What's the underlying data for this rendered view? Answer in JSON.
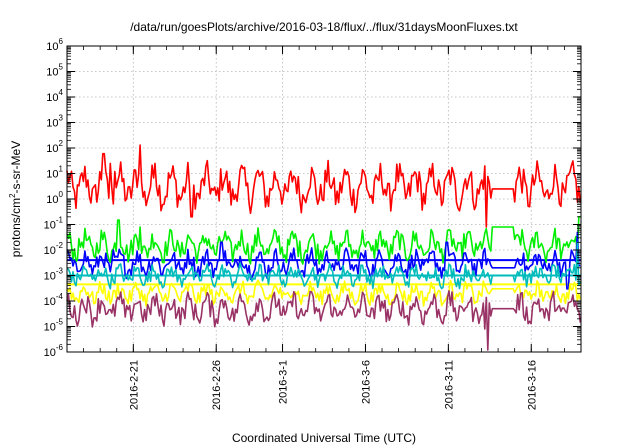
{
  "chart_data": {
    "type": "line",
    "title": "/data/run/goesPlots/archive/2016-03-18/flux/../flux/31daysMoonFluxes.txt",
    "xlabel": "Coordinated Universal Time (UTC)",
    "ylabel_parts": [
      "protons/cm",
      "2",
      "-s-sr-MeV"
    ],
    "y_scale": "log",
    "ylim": [
      1e-06,
      1000000.0
    ],
    "y_ticks": [
      {
        "base": "10",
        "exp": "-6"
      },
      {
        "base": "10",
        "exp": "-5"
      },
      {
        "base": "10",
        "exp": "-4"
      },
      {
        "base": "10",
        "exp": "-3"
      },
      {
        "base": "10",
        "exp": "-2"
      },
      {
        "base": "10",
        "exp": "-1"
      },
      {
        "base": "10",
        "exp": "0"
      },
      {
        "base": "10",
        "exp": "1"
      },
      {
        "base": "10",
        "exp": "2"
      },
      {
        "base": "10",
        "exp": "3"
      },
      {
        "base": "10",
        "exp": "4"
      },
      {
        "base": "10",
        "exp": "5"
      },
      {
        "base": "10",
        "exp": "6"
      }
    ],
    "xlim": [
      "2016-02-17",
      "2016-03-19"
    ],
    "x_ticks": [
      "2016-2-21",
      "2016-2-26",
      "2016-3-1",
      "2016-3-6",
      "2016-3-11",
      "2016-3-16"
    ],
    "x_tick_dates": [
      "2016-02-21",
      "2016-02-26",
      "2016-03-01",
      "2016-03-06",
      "2016-03-11",
      "2016-03-16"
    ],
    "grid": true,
    "series": [
      {
        "color": "#ff0000",
        "typical": 3,
        "spread": 1.0,
        "spikes": [
          [
            18.2,
            60
          ],
          [
            18.6,
            25
          ],
          [
            18.9,
            12
          ],
          [
            20.4,
            130
          ],
          [
            21.3,
            25
          ],
          [
            17.9,
            2
          ]
        ],
        "flat": [
          [
            41.6,
            43.0,
            2.5
          ]
        ],
        "dips": [
          [
            41.3,
            0.08
          ],
          [
            23.5,
            0.2
          ]
        ]
      },
      {
        "color": "#00ee00",
        "typical": 0.015,
        "spread": 0.7,
        "spikes": [
          [
            19.1,
            0.15
          ],
          [
            46.9,
            0.2
          ],
          [
            47.3,
            0.4
          ],
          [
            20.4,
            0.08
          ]
        ],
        "flat": [
          [
            41.6,
            43.0,
            0.08
          ]
        ],
        "dips": []
      },
      {
        "color": "#0000ff",
        "typical": 0.003,
        "spread": 0.6,
        "spikes": [
          [
            18.8,
            0.01
          ],
          [
            25.3,
            0.02
          ],
          [
            38.9,
            0.02
          ],
          [
            46.8,
            0.05
          ]
        ],
        "flat": [
          [
            41.6,
            43.0,
            0.002
          ]
        ],
        "dips": [
          [
            46.2,
            0.0003
          ]
        ]
      },
      {
        "color": "#00bbbb",
        "typical": 0.001,
        "spread": 0.5,
        "spikes": [
          [
            46.8,
            0.02
          ]
        ],
        "flat": [
          [
            41.6,
            43.0,
            0.001
          ]
        ],
        "dips": []
      },
      {
        "color": "#ffff00",
        "typical": 0.0002,
        "spread": 0.5,
        "spikes": [
          [
            47.2,
            0.002
          ]
        ],
        "flat": [
          [
            41.6,
            43.0,
            0.0003
          ]
        ],
        "dips": []
      },
      {
        "color": "#993366",
        "typical": 5e-05,
        "spread": 0.7,
        "spikes": [],
        "flat": [
          [
            41.6,
            43.0,
            5e-05
          ]
        ],
        "dips": [
          [
            41.4,
            1.2e-06
          ],
          [
            41.2,
            8e-06
          ]
        ]
      }
    ],
    "baselines": [
      {
        "color": "#00bbbb",
        "value": 0.001
      },
      {
        "color": "#ffff00",
        "value": 0.00045
      },
      {
        "color": "#0000ff",
        "value": 0.004
      }
    ]
  }
}
